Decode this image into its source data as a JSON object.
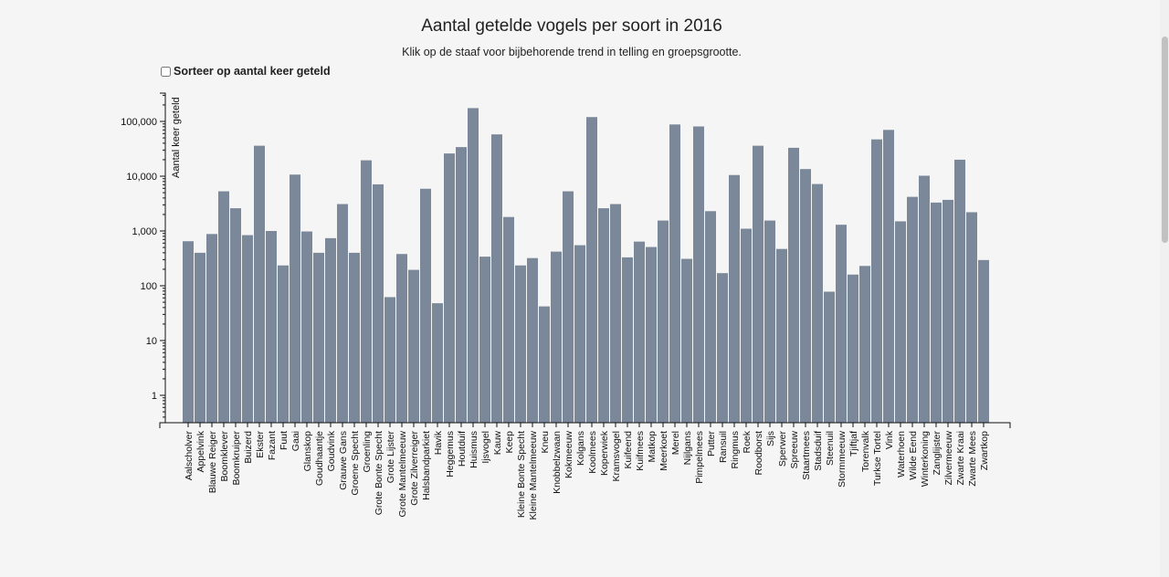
{
  "header": {
    "title": "Aantal getelde vogels per soort in 2016",
    "subtitle": "Klik op de staaf voor bijbehorende trend in telling en groepsgrootte."
  },
  "controls": {
    "sort_label": "Sorteer op aantal keer geteld",
    "sort_checked": false
  },
  "colors": {
    "bar": "#7a8899",
    "background": "#f5f5f5"
  },
  "chart_data": {
    "type": "bar",
    "title": "Aantal getelde vogels per soort in 2016",
    "ylabel": "Aantal keer geteld",
    "yscale": "log",
    "ylim": [
      0.3,
      200000
    ],
    "yticks": [
      1,
      10,
      100,
      1000,
      10000,
      100000
    ],
    "ytick_labels": [
      "1",
      "10",
      "100",
      "1,000",
      "10,000",
      "100,000"
    ],
    "categories": [
      "Aalscholver",
      "Appelvink",
      "Blauwe Reiger",
      "Boomklever",
      "Boomkruiper",
      "Buizerd",
      "Ekster",
      "Fazant",
      "Fuut",
      "Gaai",
      "Glanskop",
      "Goudhaantje",
      "Goudvink",
      "Grauwe Gans",
      "Groene Specht",
      "Groenling",
      "Grote Bonte Specht",
      "Grote Lijster",
      "Grote Mantelmeeuw",
      "Grote Zilverreiger",
      "Halsbandparkiet",
      "Havik",
      "Heggemus",
      "Houtduif",
      "Huismus",
      "Ijsvogel",
      "Kauw",
      "Keep",
      "Kleine Bonte Specht",
      "Kleine Mantelmeeuw",
      "Kneu",
      "Knobbelzwaan",
      "Kokmeeuw",
      "Kolgans",
      "Koolmees",
      "Koperwiek",
      "Kramsvogel",
      "Kuifeend",
      "Kuifmees",
      "Matkop",
      "Meerkoet",
      "Merel",
      "Nijlgans",
      "Pimpelmees",
      "Putter",
      "Ransuil",
      "Ringmus",
      "Roek",
      "Roodborst",
      "Sijs",
      "Sperwer",
      "Spreeuw",
      "Staartmees",
      "Stadsduif",
      "Steenuil",
      "Stormmeeuw",
      "Tjiftjaf",
      "Torenvalk",
      "Turkse Tortel",
      "Vink",
      "Waterhoen",
      "Wilde Eend",
      "Winterkoning",
      "Zanglijster",
      "Zilvermeeuw",
      "Zwarte Kraai",
      "Zwarte Mees",
      "Zwartkop"
    ],
    "values": [
      650,
      400,
      880,
      5300,
      2600,
      840,
      36000,
      1000,
      235,
      10700,
      980,
      400,
      740,
      3100,
      400,
      19500,
      7100,
      62,
      380,
      195,
      5900,
      48,
      26000,
      34000,
      175000,
      340,
      58000,
      1800,
      235,
      320,
      42,
      420,
      5300,
      550,
      120000,
      2600,
      3100,
      330,
      640,
      510,
      1550,
      88000,
      310,
      81000,
      2300,
      170,
      10500,
      1100,
      36000,
      1550,
      470,
      33000,
      13500,
      7200,
      78,
      1300,
      160,
      230,
      47000,
      70000,
      1500,
      4200,
      10200,
      3300,
      3700,
      20000,
      2200,
      295
    ]
  }
}
